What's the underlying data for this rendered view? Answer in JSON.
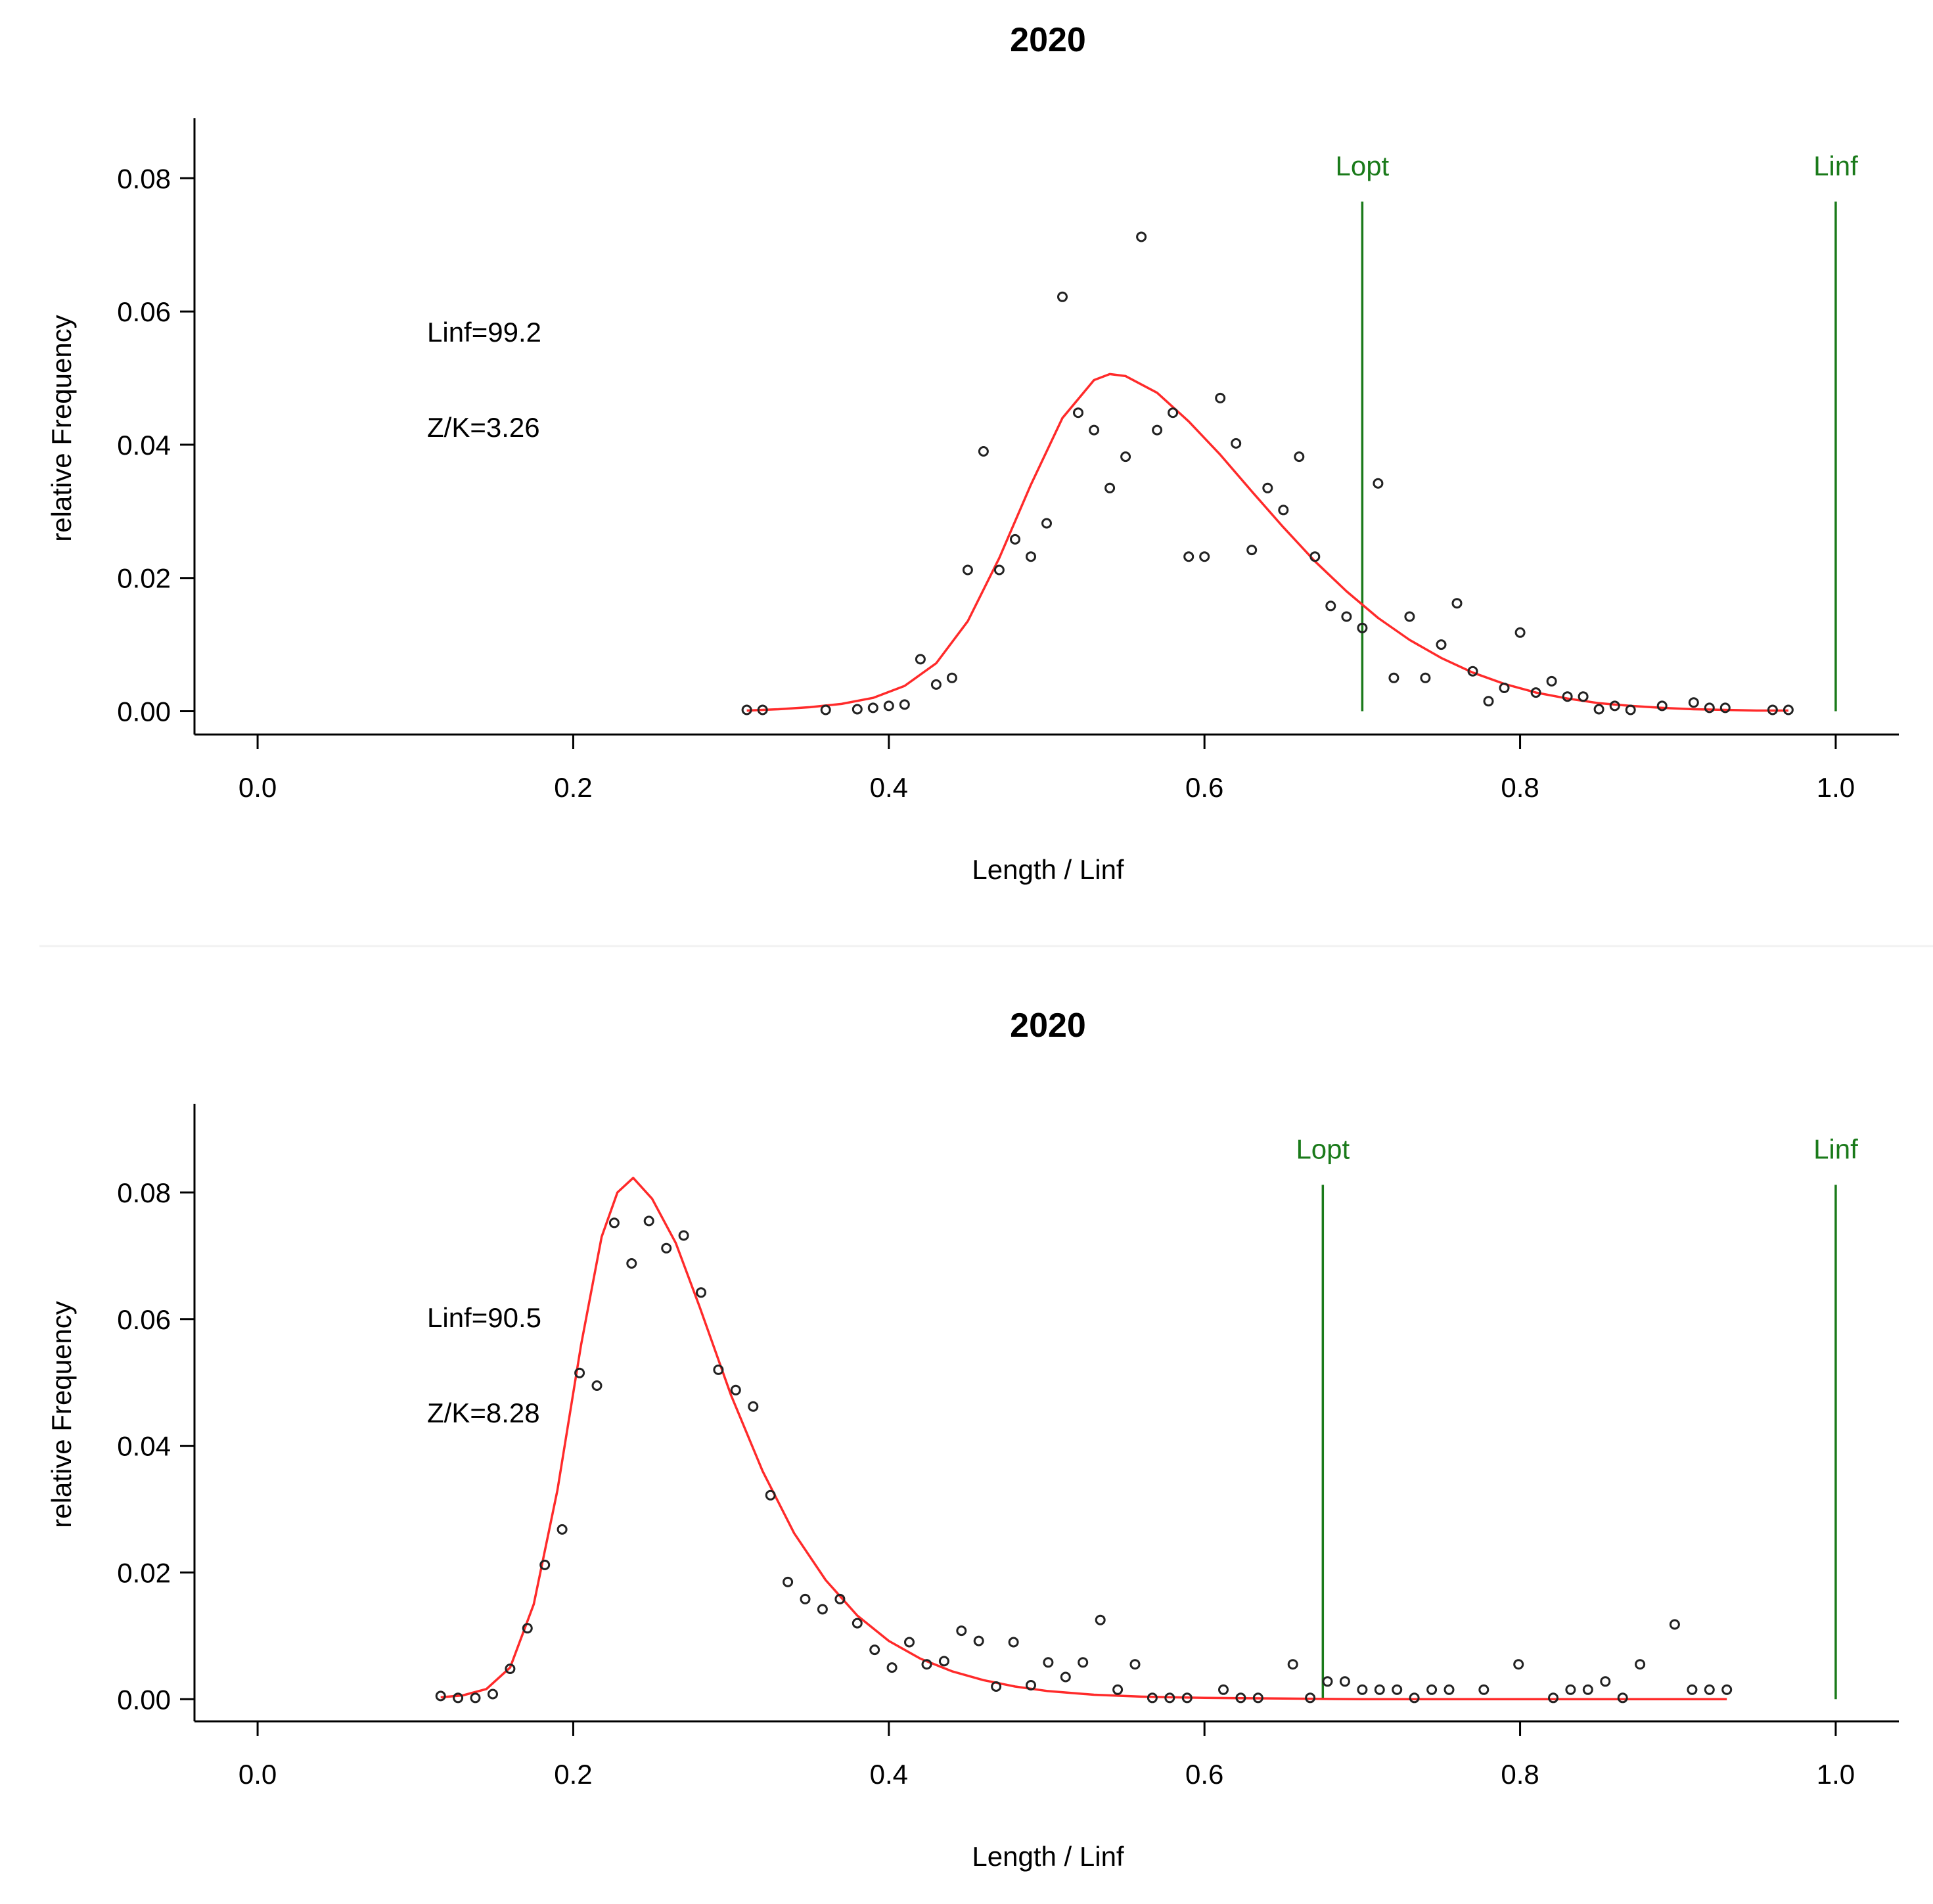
{
  "colors": {
    "fit_curve": "#ff2a2a",
    "reference_lines": "#1a7a1a",
    "points": "#222222",
    "axis": "#000000"
  },
  "chart_data": [
    {
      "type": "scatter",
      "title": "2020",
      "xlabel": "Length / Linf",
      "ylabel": "relative Frequency",
      "xlim": [
        -0.04,
        1.04
      ],
      "ylim": [
        -0.0035,
        0.089
      ],
      "xticks": [
        0.0,
        0.2,
        0.4,
        0.6,
        0.8,
        1.0
      ],
      "xtick_labels": [
        "0.0",
        "0.2",
        "0.4",
        "0.6",
        "0.8",
        "1.0"
      ],
      "yticks": [
        0.0,
        0.02,
        0.04,
        0.06,
        0.08
      ],
      "ytick_labels": [
        "0.00",
        "0.02",
        "0.04",
        "0.06",
        "0.08"
      ],
      "annotations": [
        "Linf=99.2",
        "Z/K=3.26"
      ],
      "reference_lines": [
        {
          "label": "Lopt",
          "x": 0.7,
          "y_top": 0.0765
        },
        {
          "label": "Linf",
          "x": 1.0,
          "y_top": 0.0765
        }
      ],
      "points": [
        [
          0.31,
          0.0002
        ],
        [
          0.32,
          0.0002
        ],
        [
          0.36,
          0.0002
        ],
        [
          0.38,
          0.0003
        ],
        [
          0.39,
          0.0005
        ],
        [
          0.4,
          0.0008
        ],
        [
          0.41,
          0.001
        ],
        [
          0.42,
          0.0078
        ],
        [
          0.43,
          0.004
        ],
        [
          0.44,
          0.005
        ],
        [
          0.45,
          0.0212
        ],
        [
          0.46,
          0.039
        ],
        [
          0.47,
          0.0212
        ],
        [
          0.48,
          0.0258
        ],
        [
          0.49,
          0.0232
        ],
        [
          0.5,
          0.0282
        ],
        [
          0.51,
          0.0622
        ],
        [
          0.52,
          0.0448
        ],
        [
          0.53,
          0.0422
        ],
        [
          0.54,
          0.0335
        ],
        [
          0.55,
          0.0382
        ],
        [
          0.56,
          0.0712
        ],
        [
          0.57,
          0.0422
        ],
        [
          0.58,
          0.0448
        ],
        [
          0.59,
          0.0232
        ],
        [
          0.6,
          0.0232
        ],
        [
          0.61,
          0.047
        ],
        [
          0.62,
          0.0402
        ],
        [
          0.63,
          0.0242
        ],
        [
          0.64,
          0.0335
        ],
        [
          0.65,
          0.0302
        ],
        [
          0.66,
          0.0382
        ],
        [
          0.67,
          0.0232
        ],
        [
          0.68,
          0.0158
        ],
        [
          0.69,
          0.0142
        ],
        [
          0.7,
          0.0125
        ],
        [
          0.71,
          0.0342
        ],
        [
          0.72,
          0.005
        ],
        [
          0.73,
          0.0142
        ],
        [
          0.74,
          0.005
        ],
        [
          0.75,
          0.01
        ],
        [
          0.76,
          0.0162
        ],
        [
          0.77,
          0.006
        ],
        [
          0.78,
          0.0015
        ],
        [
          0.79,
          0.0035
        ],
        [
          0.8,
          0.0118
        ],
        [
          0.81,
          0.0028
        ],
        [
          0.82,
          0.0045
        ],
        [
          0.83,
          0.0022
        ],
        [
          0.84,
          0.0022
        ],
        [
          0.85,
          0.0003
        ],
        [
          0.86,
          0.0008
        ],
        [
          0.87,
          0.0002
        ],
        [
          0.89,
          0.0008
        ],
        [
          0.91,
          0.0013
        ],
        [
          0.92,
          0.0005
        ],
        [
          0.93,
          0.0005
        ],
        [
          0.96,
          0.0002
        ],
        [
          0.97,
          0.0002
        ]
      ],
      "fit_curve": [
        [
          0.31,
          0.0001
        ],
        [
          0.33,
          0.0003
        ],
        [
          0.35,
          0.0006
        ],
        [
          0.37,
          0.0011
        ],
        [
          0.39,
          0.002
        ],
        [
          0.41,
          0.0038
        ],
        [
          0.43,
          0.0072
        ],
        [
          0.45,
          0.0135
        ],
        [
          0.47,
          0.023
        ],
        [
          0.49,
          0.034
        ],
        [
          0.51,
          0.044
        ],
        [
          0.53,
          0.0497
        ],
        [
          0.54,
          0.0506
        ],
        [
          0.55,
          0.0503
        ],
        [
          0.57,
          0.0478
        ],
        [
          0.59,
          0.0435
        ],
        [
          0.61,
          0.0385
        ],
        [
          0.63,
          0.033
        ],
        [
          0.65,
          0.0276
        ],
        [
          0.67,
          0.0225
        ],
        [
          0.69,
          0.018
        ],
        [
          0.71,
          0.014
        ],
        [
          0.73,
          0.0107
        ],
        [
          0.75,
          0.008
        ],
        [
          0.77,
          0.0058
        ],
        [
          0.79,
          0.0041
        ],
        [
          0.81,
          0.0028
        ],
        [
          0.83,
          0.0019
        ],
        [
          0.85,
          0.0012
        ],
        [
          0.87,
          0.0008
        ],
        [
          0.89,
          0.0005
        ],
        [
          0.91,
          0.0003
        ],
        [
          0.93,
          0.0002
        ],
        [
          0.95,
          0.0001
        ],
        [
          0.97,
          0.0001
        ]
      ]
    },
    {
      "type": "scatter",
      "title": "2020",
      "xlabel": "Length / Linf",
      "ylabel": "relative Frequency",
      "xlim": [
        -0.04,
        1.04
      ],
      "ylim": [
        -0.0035,
        0.094
      ],
      "xticks": [
        0.0,
        0.2,
        0.4,
        0.6,
        0.8,
        1.0
      ],
      "xtick_labels": [
        "0.0",
        "0.2",
        "0.4",
        "0.6",
        "0.8",
        "1.0"
      ],
      "yticks": [
        0.0,
        0.02,
        0.04,
        0.06,
        0.08
      ],
      "ytick_labels": [
        "0.00",
        "0.02",
        "0.04",
        "0.06",
        "0.08"
      ],
      "annotations": [
        "Linf=90.5",
        "Z/K=8.28"
      ],
      "reference_lines": [
        {
          "label": "Lopt",
          "x": 0.675,
          "y_top": 0.0812
        },
        {
          "label": "Linf",
          "x": 1.0,
          "y_top": 0.0812
        }
      ],
      "points": [
        [
          0.116,
          0.0005
        ],
        [
          0.127,
          0.0002
        ],
        [
          0.138,
          0.0002
        ],
        [
          0.149,
          0.0008
        ],
        [
          0.16,
          0.0048
        ],
        [
          0.171,
          0.0112
        ],
        [
          0.182,
          0.0212
        ],
        [
          0.193,
          0.0268
        ],
        [
          0.204,
          0.0515
        ],
        [
          0.215,
          0.0495
        ],
        [
          0.226,
          0.0752
        ],
        [
          0.237,
          0.0688
        ],
        [
          0.248,
          0.0755
        ],
        [
          0.259,
          0.0712
        ],
        [
          0.27,
          0.0732
        ],
        [
          0.281,
          0.0642
        ],
        [
          0.292,
          0.052
        ],
        [
          0.303,
          0.0488
        ],
        [
          0.314,
          0.0462
        ],
        [
          0.325,
          0.0322
        ],
        [
          0.336,
          0.0185
        ],
        [
          0.347,
          0.0158
        ],
        [
          0.358,
          0.0142
        ],
        [
          0.369,
          0.0158
        ],
        [
          0.38,
          0.012
        ],
        [
          0.391,
          0.0078
        ],
        [
          0.402,
          0.005
        ],
        [
          0.413,
          0.009
        ],
        [
          0.424,
          0.0055
        ],
        [
          0.435,
          0.006
        ],
        [
          0.446,
          0.0108
        ],
        [
          0.457,
          0.0092
        ],
        [
          0.468,
          0.002
        ],
        [
          0.479,
          0.009
        ],
        [
          0.49,
          0.0022
        ],
        [
          0.501,
          0.0058
        ],
        [
          0.512,
          0.0035
        ],
        [
          0.523,
          0.0058
        ],
        [
          0.534,
          0.0125
        ],
        [
          0.545,
          0.0015
        ],
        [
          0.556,
          0.0055
        ],
        [
          0.567,
          0.0002
        ],
        [
          0.578,
          0.0002
        ],
        [
          0.589,
          0.0002
        ],
        [
          0.612,
          0.0015
        ],
        [
          0.623,
          0.0002
        ],
        [
          0.634,
          0.0002
        ],
        [
          0.656,
          0.0055
        ],
        [
          0.667,
          0.0002
        ],
        [
          0.678,
          0.0028
        ],
        [
          0.689,
          0.0028
        ],
        [
          0.7,
          0.0015
        ],
        [
          0.711,
          0.0015
        ],
        [
          0.722,
          0.0015
        ],
        [
          0.733,
          0.0002
        ],
        [
          0.744,
          0.0015
        ],
        [
          0.755,
          0.0015
        ],
        [
          0.777,
          0.0015
        ],
        [
          0.799,
          0.0055
        ],
        [
          0.821,
          0.0002
        ],
        [
          0.832,
          0.0015
        ],
        [
          0.843,
          0.0015
        ],
        [
          0.854,
          0.0028
        ],
        [
          0.865,
          0.0002
        ],
        [
          0.876,
          0.0055
        ],
        [
          0.898,
          0.0118
        ],
        [
          0.909,
          0.0015
        ],
        [
          0.92,
          0.0015
        ],
        [
          0.931,
          0.0015
        ]
      ],
      "fit_curve": [
        [
          0.116,
          0.0003
        ],
        [
          0.13,
          0.0006
        ],
        [
          0.145,
          0.0016
        ],
        [
          0.16,
          0.005
        ],
        [
          0.175,
          0.015
        ],
        [
          0.19,
          0.033
        ],
        [
          0.205,
          0.056
        ],
        [
          0.218,
          0.073
        ],
        [
          0.228,
          0.08
        ],
        [
          0.238,
          0.0823
        ],
        [
          0.25,
          0.079
        ],
        [
          0.265,
          0.072
        ],
        [
          0.28,
          0.062
        ],
        [
          0.3,
          0.048
        ],
        [
          0.32,
          0.036
        ],
        [
          0.34,
          0.0262
        ],
        [
          0.36,
          0.0188
        ],
        [
          0.38,
          0.0132
        ],
        [
          0.4,
          0.0092
        ],
        [
          0.42,
          0.0064
        ],
        [
          0.44,
          0.0044
        ],
        [
          0.46,
          0.003
        ],
        [
          0.48,
          0.002
        ],
        [
          0.5,
          0.0013
        ],
        [
          0.53,
          0.0007
        ],
        [
          0.56,
          0.0004
        ],
        [
          0.6,
          0.0002
        ],
        [
          0.65,
          0.0001
        ],
        [
          0.7,
          0.0
        ],
        [
          0.8,
          0.0
        ],
        [
          0.931,
          0.0
        ]
      ]
    }
  ]
}
